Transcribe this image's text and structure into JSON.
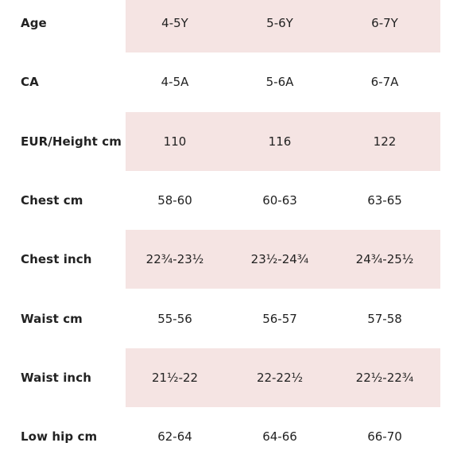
{
  "size_chart": {
    "rows": [
      {
        "label": "Age",
        "values": [
          "4-5Y",
          "5-6Y",
          "6-7Y"
        ]
      },
      {
        "label": "CA",
        "values": [
          "4-5A",
          "5-6A",
          "6-7A"
        ]
      },
      {
        "label": "EUR/Height cm",
        "values": [
          "110",
          "116",
          "122"
        ]
      },
      {
        "label": "Chest cm",
        "values": [
          "58-60",
          "60-63",
          "63-65"
        ]
      },
      {
        "label": "Chest inch",
        "values": [
          "22¾-23½",
          "23½-24¾",
          "24¾-25½"
        ]
      },
      {
        "label": "Waist cm",
        "values": [
          "55-56",
          "56-57",
          "57-58"
        ]
      },
      {
        "label": "Waist inch",
        "values": [
          "21½-22",
          "22-22½",
          "22½-22¾"
        ]
      },
      {
        "label": "Low hip cm",
        "values": [
          "62-64",
          "64-66",
          "66-70"
        ]
      }
    ],
    "colors": {
      "shaded_band": "#f5e4e3",
      "text": "#222222",
      "background": "#ffffff"
    }
  }
}
